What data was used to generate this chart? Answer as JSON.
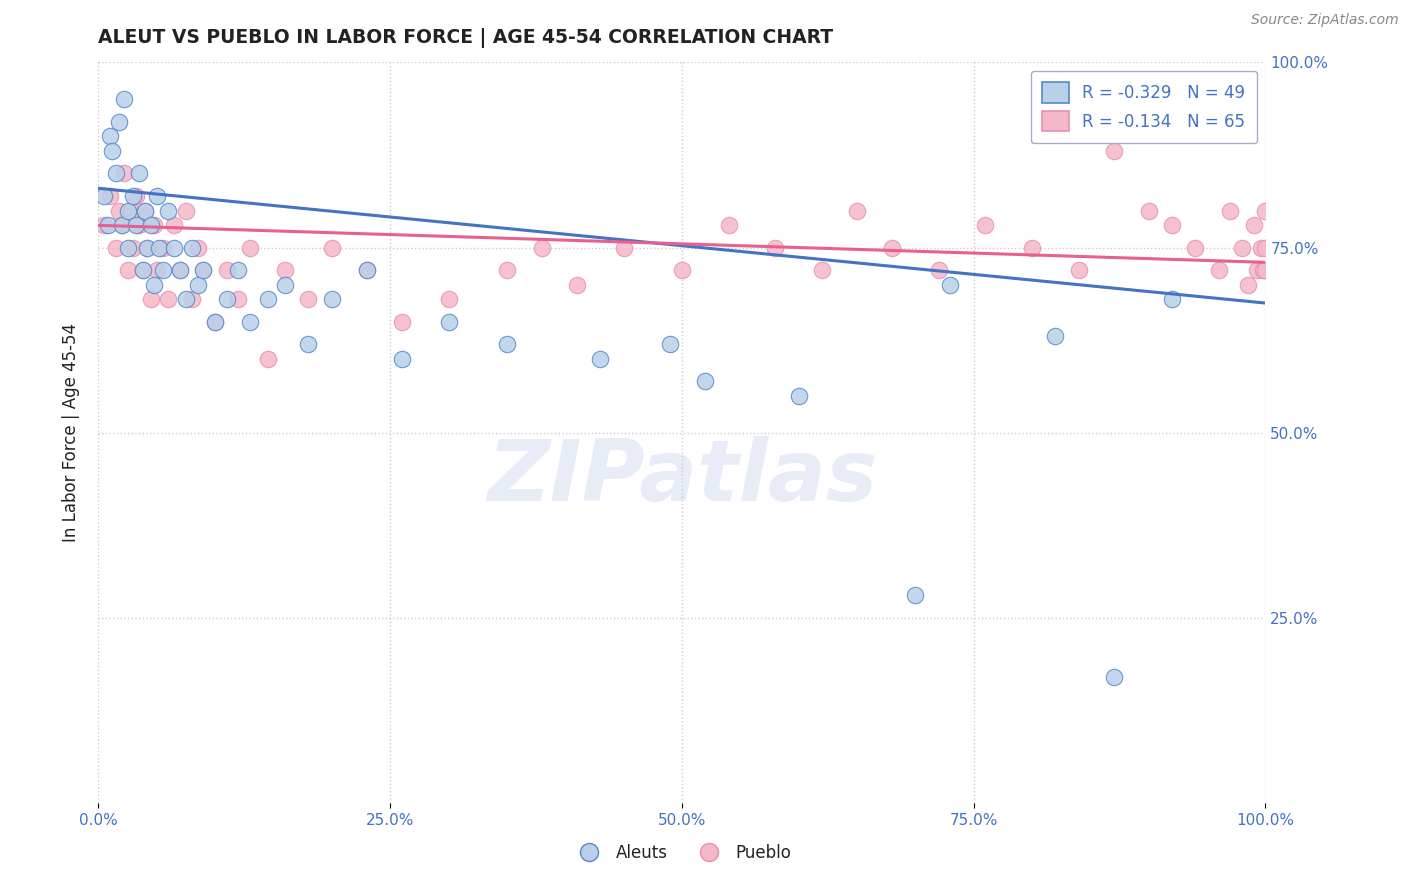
{
  "title": "ALEUT VS PUEBLO IN LABOR FORCE | AGE 45-54 CORRELATION CHART",
  "source": "Source: ZipAtlas.com",
  "ylabel": "In Labor Force | Age 45-54",
  "xlim": [
    0.0,
    1.0
  ],
  "ylim": [
    0.0,
    1.0
  ],
  "xticks": [
    0.0,
    0.25,
    0.5,
    0.75,
    1.0
  ],
  "yticks_right": [
    0.25,
    0.5,
    0.75,
    1.0
  ],
  "xticklabels": [
    "0.0%",
    "25.0%",
    "50.0%",
    "75.0%",
    "100.0%"
  ],
  "yticklabels_right": [
    "25.0%",
    "50.0%",
    "75.0%",
    "100.0%"
  ],
  "aleuts_color": "#b8d0e8",
  "pueblo_color": "#f5b8c8",
  "aleuts_edge_color": "#5588cc",
  "pueblo_edge_color": "#e890b0",
  "aleuts_line_color": "#4472c4",
  "pueblo_line_color": "#e86090",
  "aleuts_R": "-0.329",
  "aleuts_N": "49",
  "pueblo_R": "-0.134",
  "pueblo_N": "65",
  "aleuts_scatter_x": [
    0.005,
    0.008,
    0.01,
    0.012,
    0.015,
    0.018,
    0.02,
    0.022,
    0.025,
    0.025,
    0.03,
    0.032,
    0.035,
    0.038,
    0.04,
    0.042,
    0.045,
    0.048,
    0.05,
    0.052,
    0.055,
    0.06,
    0.065,
    0.07,
    0.075,
    0.08,
    0.085,
    0.09,
    0.1,
    0.11,
    0.12,
    0.13,
    0.145,
    0.16,
    0.18,
    0.2,
    0.23,
    0.26,
    0.3,
    0.35,
    0.43,
    0.49,
    0.52,
    0.6,
    0.7,
    0.73,
    0.82,
    0.87,
    0.92
  ],
  "aleuts_scatter_y": [
    0.82,
    0.78,
    0.9,
    0.88,
    0.85,
    0.92,
    0.78,
    0.95,
    0.8,
    0.75,
    0.82,
    0.78,
    0.85,
    0.72,
    0.8,
    0.75,
    0.78,
    0.7,
    0.82,
    0.75,
    0.72,
    0.8,
    0.75,
    0.72,
    0.68,
    0.75,
    0.7,
    0.72,
    0.65,
    0.68,
    0.72,
    0.65,
    0.68,
    0.7,
    0.62,
    0.68,
    0.72,
    0.6,
    0.65,
    0.62,
    0.6,
    0.62,
    0.57,
    0.55,
    0.28,
    0.7,
    0.63,
    0.17,
    0.68
  ],
  "pueblo_scatter_x": [
    0.005,
    0.01,
    0.015,
    0.018,
    0.02,
    0.022,
    0.025,
    0.028,
    0.03,
    0.032,
    0.035,
    0.038,
    0.04,
    0.042,
    0.045,
    0.048,
    0.05,
    0.055,
    0.06,
    0.065,
    0.07,
    0.075,
    0.08,
    0.085,
    0.09,
    0.1,
    0.11,
    0.12,
    0.13,
    0.145,
    0.16,
    0.18,
    0.2,
    0.23,
    0.26,
    0.3,
    0.35,
    0.38,
    0.41,
    0.45,
    0.5,
    0.54,
    0.58,
    0.62,
    0.65,
    0.68,
    0.72,
    0.76,
    0.8,
    0.84,
    0.87,
    0.9,
    0.92,
    0.94,
    0.96,
    0.97,
    0.98,
    0.985,
    0.99,
    0.993,
    0.996,
    0.998,
    1.0,
    1.0,
    1.0
  ],
  "pueblo_scatter_y": [
    0.78,
    0.82,
    0.75,
    0.8,
    0.78,
    0.85,
    0.72,
    0.8,
    0.75,
    0.82,
    0.78,
    0.72,
    0.8,
    0.75,
    0.68,
    0.78,
    0.72,
    0.75,
    0.68,
    0.78,
    0.72,
    0.8,
    0.68,
    0.75,
    0.72,
    0.65,
    0.72,
    0.68,
    0.75,
    0.6,
    0.72,
    0.68,
    0.75,
    0.72,
    0.65,
    0.68,
    0.72,
    0.75,
    0.7,
    0.75,
    0.72,
    0.78,
    0.75,
    0.72,
    0.8,
    0.75,
    0.72,
    0.78,
    0.75,
    0.72,
    0.88,
    0.8,
    0.78,
    0.75,
    0.72,
    0.8,
    0.75,
    0.7,
    0.78,
    0.72,
    0.75,
    0.72,
    0.8,
    0.75,
    0.72
  ],
  "aleuts_trend_y_start": 0.83,
  "aleuts_trend_y_end": 0.675,
  "pueblo_trend_y_start": 0.78,
  "pueblo_trend_y_end": 0.73,
  "watermark_text": "ZIPatlas",
  "background_color": "#ffffff",
  "grid_color": "#cccccc",
  "title_color": "#222222",
  "tick_color": "#4472c4",
  "source_color": "#888888"
}
